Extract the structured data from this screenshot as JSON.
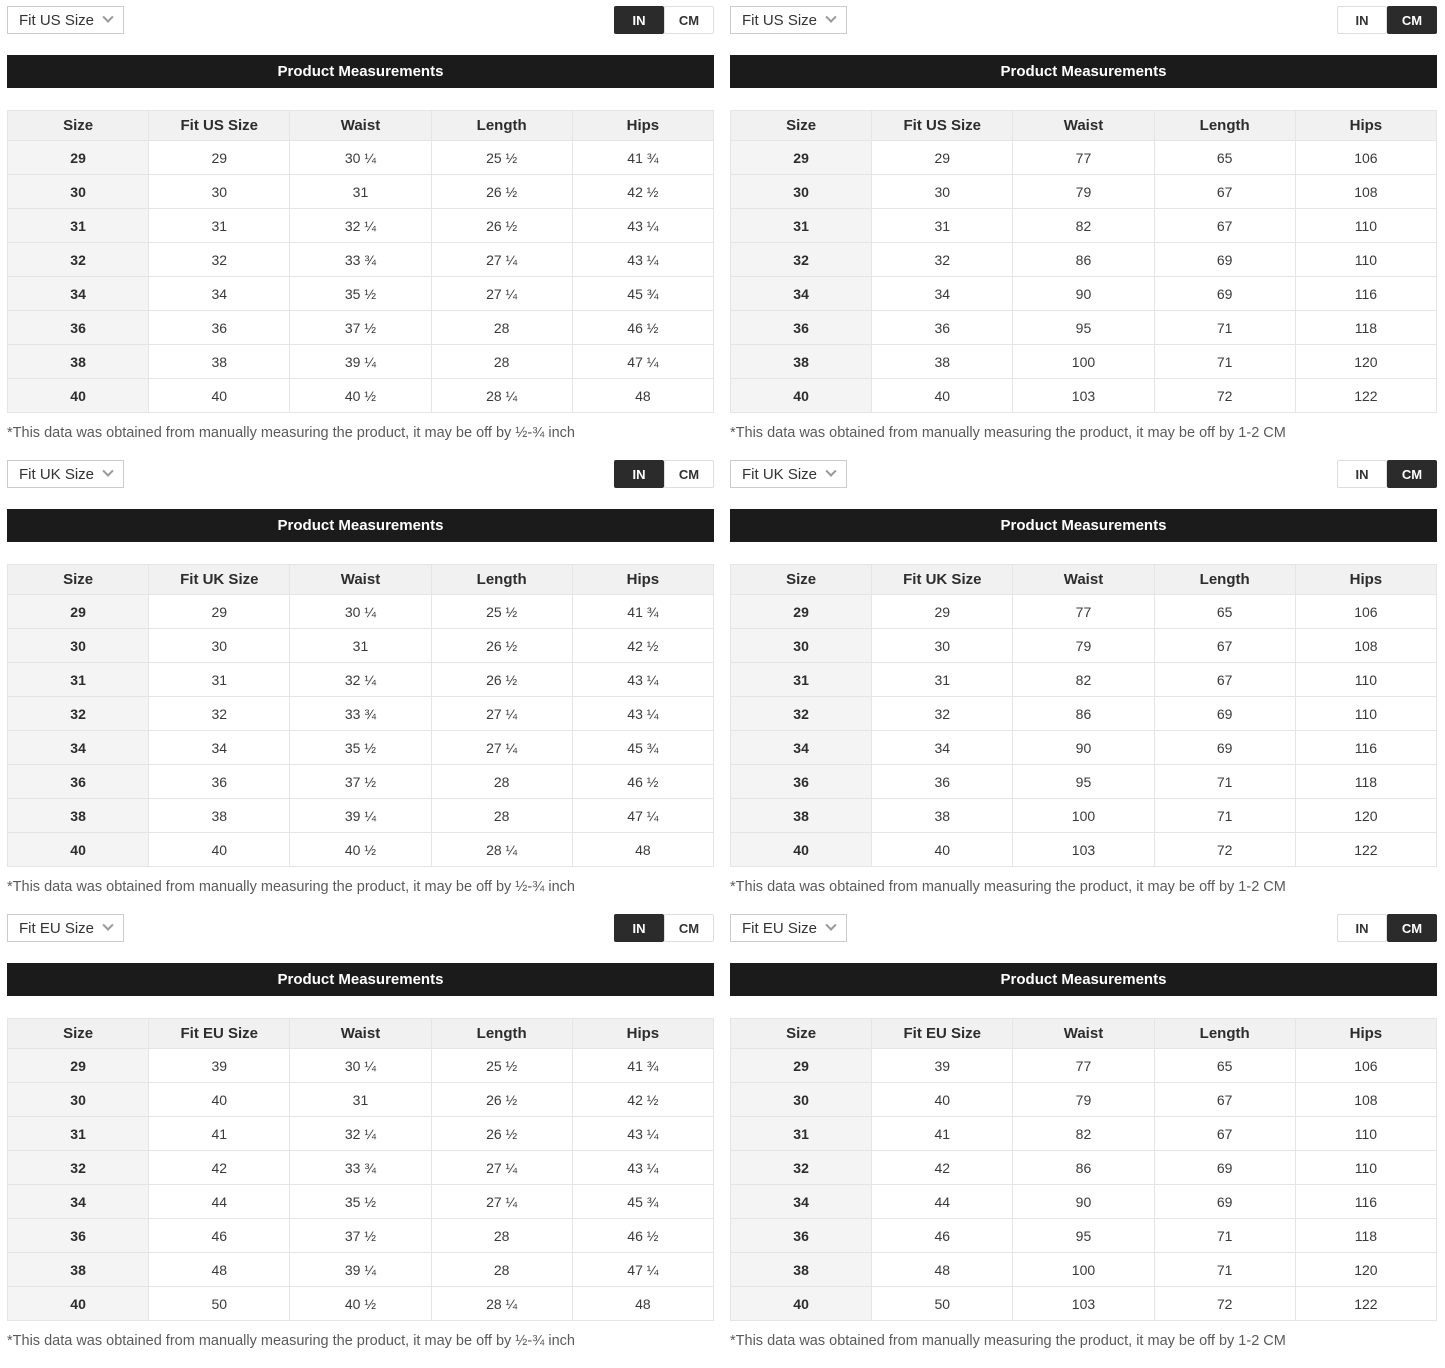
{
  "header_title": "Product Measurements",
  "unit_labels": [
    "IN",
    "CM"
  ],
  "footnotes": {
    "inch": "*This data was obtained from manually measuring the product, it may be off by ½-¾ inch",
    "cm": "*This data was obtained from manually measuring the product, it may be off by 1-2 CM"
  },
  "panels": [
    {
      "id": "us-in",
      "dropdown_label": "Fit US Size",
      "active_unit": "IN",
      "columns": [
        "Size",
        "Fit US Size",
        "Waist",
        "Length",
        "Hips"
      ],
      "rows": [
        [
          "29",
          "29",
          "30 ¼",
          "25 ½",
          "41 ¾"
        ],
        [
          "30",
          "30",
          "31",
          "26 ½",
          "42 ½"
        ],
        [
          "31",
          "31",
          "32 ¼",
          "26 ½",
          "43 ¼"
        ],
        [
          "32",
          "32",
          "33 ¾",
          "27 ¼",
          "43 ¼"
        ],
        [
          "34",
          "34",
          "35 ½",
          "27 ¼",
          "45 ¾"
        ],
        [
          "36",
          "36",
          "37 ½",
          "28",
          "46 ½"
        ],
        [
          "38",
          "38",
          "39 ¼",
          "28",
          "47 ¼"
        ],
        [
          "40",
          "40",
          "40 ½",
          "28 ¼",
          "48"
        ]
      ],
      "footnote": "*This data was obtained from manually measuring the product, it may be off by ½-¾ inch"
    },
    {
      "id": "us-cm",
      "dropdown_label": "Fit US Size",
      "active_unit": "CM",
      "columns": [
        "Size",
        "Fit US Size",
        "Waist",
        "Length",
        "Hips"
      ],
      "rows": [
        [
          "29",
          "29",
          "77",
          "65",
          "106"
        ],
        [
          "30",
          "30",
          "79",
          "67",
          "108"
        ],
        [
          "31",
          "31",
          "82",
          "67",
          "110"
        ],
        [
          "32",
          "32",
          "86",
          "69",
          "110"
        ],
        [
          "34",
          "34",
          "90",
          "69",
          "116"
        ],
        [
          "36",
          "36",
          "95",
          "71",
          "118"
        ],
        [
          "38",
          "38",
          "100",
          "71",
          "120"
        ],
        [
          "40",
          "40",
          "103",
          "72",
          "122"
        ]
      ],
      "footnote": "*This data was obtained from manually measuring the product, it may be off by 1-2 CM"
    },
    {
      "id": "uk-in",
      "dropdown_label": "Fit UK Size",
      "active_unit": "IN",
      "columns": [
        "Size",
        "Fit UK Size",
        "Waist",
        "Length",
        "Hips"
      ],
      "rows": [
        [
          "29",
          "29",
          "30 ¼",
          "25 ½",
          "41 ¾"
        ],
        [
          "30",
          "30",
          "31",
          "26 ½",
          "42 ½"
        ],
        [
          "31",
          "31",
          "32 ¼",
          "26 ½",
          "43 ¼"
        ],
        [
          "32",
          "32",
          "33 ¾",
          "27 ¼",
          "43 ¼"
        ],
        [
          "34",
          "34",
          "35 ½",
          "27 ¼",
          "45 ¾"
        ],
        [
          "36",
          "36",
          "37 ½",
          "28",
          "46 ½"
        ],
        [
          "38",
          "38",
          "39 ¼",
          "28",
          "47 ¼"
        ],
        [
          "40",
          "40",
          "40 ½",
          "28 ¼",
          "48"
        ]
      ],
      "footnote": "*This data was obtained from manually measuring the product, it may be off by ½-¾ inch"
    },
    {
      "id": "uk-cm",
      "dropdown_label": "Fit UK Size",
      "active_unit": "CM",
      "columns": [
        "Size",
        "Fit UK Size",
        "Waist",
        "Length",
        "Hips"
      ],
      "rows": [
        [
          "29",
          "29",
          "77",
          "65",
          "106"
        ],
        [
          "30",
          "30",
          "79",
          "67",
          "108"
        ],
        [
          "31",
          "31",
          "82",
          "67",
          "110"
        ],
        [
          "32",
          "32",
          "86",
          "69",
          "110"
        ],
        [
          "34",
          "34",
          "90",
          "69",
          "116"
        ],
        [
          "36",
          "36",
          "95",
          "71",
          "118"
        ],
        [
          "38",
          "38",
          "100",
          "71",
          "120"
        ],
        [
          "40",
          "40",
          "103",
          "72",
          "122"
        ]
      ],
      "footnote": "*This data was obtained from manually measuring the product, it may be off by 1-2 CM"
    },
    {
      "id": "eu-in",
      "dropdown_label": "Fit EU Size",
      "active_unit": "IN",
      "columns": [
        "Size",
        "Fit EU Size",
        "Waist",
        "Length",
        "Hips"
      ],
      "rows": [
        [
          "29",
          "39",
          "30 ¼",
          "25 ½",
          "41 ¾"
        ],
        [
          "30",
          "40",
          "31",
          "26 ½",
          "42 ½"
        ],
        [
          "31",
          "41",
          "32 ¼",
          "26 ½",
          "43 ¼"
        ],
        [
          "32",
          "42",
          "33 ¾",
          "27 ¼",
          "43 ¼"
        ],
        [
          "34",
          "44",
          "35 ½",
          "27 ¼",
          "45 ¾"
        ],
        [
          "36",
          "46",
          "37 ½",
          "28",
          "46 ½"
        ],
        [
          "38",
          "48",
          "39 ¼",
          "28",
          "47 ¼"
        ],
        [
          "40",
          "50",
          "40 ½",
          "28 ¼",
          "48"
        ]
      ],
      "footnote": "*This data was obtained from manually measuring the product, it may be off by ½-¾ inch"
    },
    {
      "id": "eu-cm",
      "dropdown_label": "Fit EU Size",
      "active_unit": "CM",
      "columns": [
        "Size",
        "Fit EU Size",
        "Waist",
        "Length",
        "Hips"
      ],
      "rows": [
        [
          "29",
          "39",
          "77",
          "65",
          "106"
        ],
        [
          "30",
          "40",
          "79",
          "67",
          "108"
        ],
        [
          "31",
          "41",
          "82",
          "67",
          "110"
        ],
        [
          "32",
          "42",
          "86",
          "69",
          "110"
        ],
        [
          "34",
          "44",
          "90",
          "69",
          "116"
        ],
        [
          "36",
          "46",
          "95",
          "71",
          "118"
        ],
        [
          "38",
          "48",
          "100",
          "71",
          "120"
        ],
        [
          "40",
          "50",
          "103",
          "72",
          "122"
        ]
      ],
      "footnote": "*This data was obtained from manually measuring the product, it may be off by 1-2 CM"
    }
  ],
  "colors": {
    "accent_dark": "#1b1b1b",
    "toggle_active": "#2b2b2b",
    "table_header_bg": "#f1f1f1",
    "size_col_bg": "#f4f4f4",
    "border": "#e5e5e5",
    "footnote_text": "#5a5a5a"
  }
}
